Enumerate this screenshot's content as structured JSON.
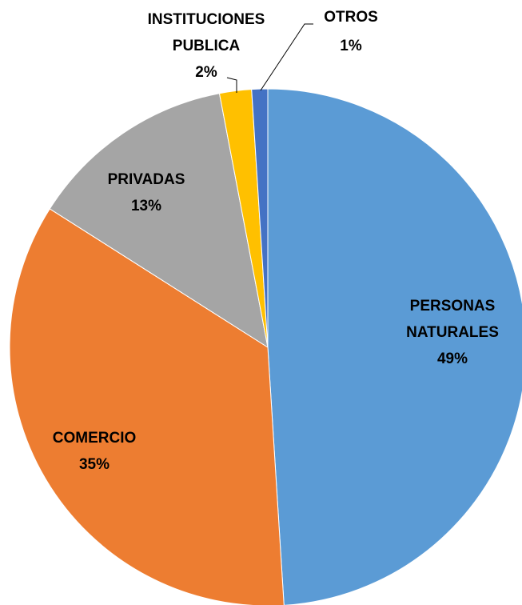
{
  "chart_data": {
    "type": "pie",
    "categories": [
      "PERSONAS NATURALES",
      "COMERCIO",
      "PRIVADAS",
      "INSTITUCIONES PUBLICA",
      "OTROS"
    ],
    "values": [
      49,
      35,
      13,
      2,
      1
    ],
    "value_labels": [
      "49%",
      "35%",
      "13%",
      "2%",
      "1%"
    ],
    "colors": [
      "#5b9bd5",
      "#ed7d31",
      "#a5a5a5",
      "#ffc000",
      "#4472c4"
    ]
  }
}
